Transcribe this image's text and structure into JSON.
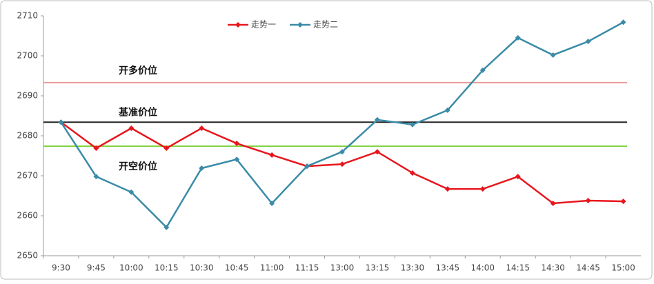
{
  "chart_data": {
    "type": "line",
    "categories": [
      "9:30",
      "9:45",
      "10:00",
      "10:15",
      "10:30",
      "10:45",
      "11:00",
      "11:15",
      "13:00",
      "13:15",
      "13:30",
      "13:45",
      "14:00",
      "14:15",
      "14:30",
      "14:45",
      "15:00"
    ],
    "series": [
      {
        "name": "走势一",
        "color": "#e8161c",
        "values": [
          2683.4,
          2676.9,
          2681.9,
          2676.9,
          2681.9,
          2678.1,
          2675.2,
          2672.4,
          2672.9,
          2676.0,
          2670.7,
          2666.7,
          2666.7,
          2669.8,
          2663.1,
          2663.8,
          2663.6
        ]
      },
      {
        "name": "走势二",
        "color": "#3a8ba7",
        "values": [
          2683.4,
          2669.8,
          2665.9,
          2657.1,
          2671.9,
          2674.1,
          2663.1,
          2672.4,
          2676.0,
          2684.0,
          2682.8,
          2686.4,
          2696.4,
          2704.5,
          2700.2,
          2703.6,
          2708.4
        ]
      }
    ],
    "reference_lines": [
      {
        "label": "开多价位",
        "value": 2693.3,
        "color": "#e89a9a"
      },
      {
        "label": "基准价位",
        "value": 2683.4,
        "color": "#222222"
      },
      {
        "label": "开空价位",
        "value": 2677.4,
        "color": "#7ed23a"
      }
    ],
    "ylim": [
      2650,
      2710
    ],
    "yticks": [
      2650,
      2660,
      2670,
      2680,
      2690,
      2700,
      2710
    ]
  }
}
